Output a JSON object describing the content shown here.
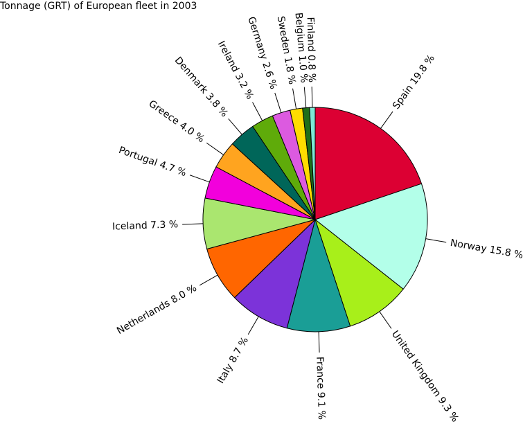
{
  "chart_data": {
    "type": "pie",
    "title": "Tonnage (GRT) of European fleet in 2003",
    "unit": "%",
    "slices": [
      {
        "label": "Spain",
        "value": 19.8,
        "display": "19.8 %",
        "color": "#dc0033"
      },
      {
        "label": "Norway",
        "value": 15.8,
        "display": "15.8 %",
        "color": "#b3ffe9"
      },
      {
        "label": "United Kingdom",
        "value": 9.3,
        "display": "9.3 %",
        "color": "#a8ef1a"
      },
      {
        "label": "France",
        "value": 9.1,
        "display": "9.1 %",
        "color": "#1a9e96"
      },
      {
        "label": "Italy",
        "value": 8.7,
        "display": "8.7 %",
        "color": "#7c33d9"
      },
      {
        "label": "Netherlands",
        "value": 8.0,
        "display": "8.0 %",
        "color": "#ff6600"
      },
      {
        "label": "Iceland",
        "value": 7.3,
        "display": "7.3 %",
        "color": "#aae66f"
      },
      {
        "label": "Portugal",
        "value": 4.7,
        "display": "4.7 %",
        "color": "#f200dc"
      },
      {
        "label": "Greece",
        "value": 4.0,
        "display": "4.0 %",
        "color": "#ffa41f"
      },
      {
        "label": "Denmark",
        "value": 3.8,
        "display": "3.8 %",
        "color": "#006659"
      },
      {
        "label": "Ireland",
        "value": 3.2,
        "display": "3.2 %",
        "color": "#5fab0a"
      },
      {
        "label": "Germany",
        "value": 2.6,
        "display": "2.6 %",
        "color": "#dc5ae0"
      },
      {
        "label": "Sweden",
        "value": 1.8,
        "display": "1.8 %",
        "color": "#ffdd00"
      },
      {
        "label": "Belgium",
        "value": 1.0,
        "display": "1.0 %",
        "color": "#1f6e1a"
      },
      {
        "label": "Finland",
        "value": 0.8,
        "display": "0.8 %",
        "color": "#7fe9d6"
      }
    ]
  }
}
